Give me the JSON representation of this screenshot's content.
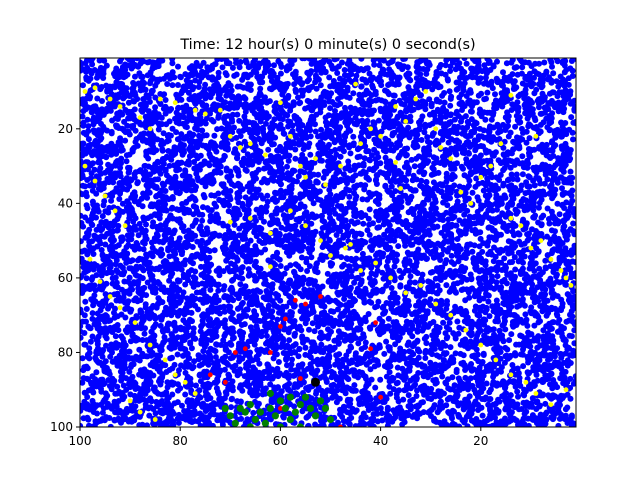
{
  "chart_data": {
    "type": "scatter",
    "title": "Time: 12 hour(s) 0 minute(s) 0 second(s)",
    "xlabel": "",
    "ylabel": "",
    "xlim": [
      100,
      1
    ],
    "ylim": [
      100,
      1
    ],
    "x_ticks": [
      100,
      80,
      60,
      40,
      20
    ],
    "y_ticks": [
      20,
      40,
      60,
      80,
      100
    ],
    "grid": false,
    "legend": "none",
    "background_fill": {
      "color": "#0000ff",
      "seed": 7,
      "count": 9000,
      "x_range": [
        1,
        100
      ],
      "y_range": [
        1,
        100
      ]
    },
    "series": [
      {
        "color": "#ffff00",
        "points": [
          [
            99,
            10
          ],
          [
            97,
            9
          ],
          [
            94,
            12
          ],
          [
            92,
            14
          ],
          [
            88,
            17
          ],
          [
            86,
            20
          ],
          [
            84,
            12
          ],
          [
            81,
            13
          ],
          [
            77,
            15
          ],
          [
            75,
            16
          ],
          [
            72,
            15
          ],
          [
            70,
            22
          ],
          [
            68,
            25
          ],
          [
            66,
            24
          ],
          [
            63,
            27
          ],
          [
            60,
            13
          ],
          [
            58,
            22
          ],
          [
            56,
            30
          ],
          [
            53,
            28
          ],
          [
            51,
            35
          ],
          [
            48,
            30
          ],
          [
            45,
            8
          ],
          [
            44,
            24
          ],
          [
            42,
            20
          ],
          [
            40,
            22
          ],
          [
            37,
            14
          ],
          [
            35,
            18
          ],
          [
            33,
            12
          ],
          [
            31,
            10
          ],
          [
            29,
            20
          ],
          [
            28,
            25
          ],
          [
            26,
            28
          ],
          [
            24,
            37
          ],
          [
            22,
            40
          ],
          [
            20,
            33
          ],
          [
            18,
            30
          ],
          [
            16,
            24
          ],
          [
            14,
            44
          ],
          [
            12,
            46
          ],
          [
            10,
            52
          ],
          [
            8,
            50
          ],
          [
            6,
            55
          ],
          [
            4,
            58
          ],
          [
            3,
            60
          ],
          [
            2,
            62
          ],
          [
            99,
            30
          ],
          [
            97,
            34
          ],
          [
            95,
            38
          ],
          [
            93,
            42
          ],
          [
            91,
            46
          ],
          [
            98,
            55
          ],
          [
            96,
            61
          ],
          [
            94,
            65
          ],
          [
            92,
            68
          ],
          [
            89,
            72
          ],
          [
            86,
            78
          ],
          [
            83,
            82
          ],
          [
            81,
            86
          ],
          [
            79,
            88
          ],
          [
            77,
            91
          ],
          [
            90,
            93
          ],
          [
            88,
            96
          ],
          [
            85,
            98
          ],
          [
            70,
            45
          ],
          [
            66,
            44
          ],
          [
            62,
            48
          ],
          [
            58,
            42
          ],
          [
            55,
            46
          ],
          [
            52,
            50
          ],
          [
            50,
            54
          ],
          [
            47,
            52
          ],
          [
            44,
            58
          ],
          [
            41,
            56
          ],
          [
            38,
            60
          ],
          [
            35,
            64
          ],
          [
            32,
            62
          ],
          [
            29,
            67
          ],
          [
            26,
            70
          ],
          [
            23,
            74
          ],
          [
            20,
            78
          ],
          [
            17,
            82
          ],
          [
            14,
            86
          ],
          [
            11,
            88
          ],
          [
            9,
            91
          ],
          [
            6,
            94
          ],
          [
            3,
            90
          ],
          [
            36,
            36
          ],
          [
            62,
            57
          ],
          [
            55,
            33
          ],
          [
            46,
            51
          ],
          [
            37,
            29
          ],
          [
            14,
            11
          ],
          [
            9,
            22
          ]
        ]
      },
      {
        "color": "#ff0000",
        "points": [
          [
            57,
            66
          ],
          [
            55,
            67
          ],
          [
            52,
            65
          ],
          [
            59,
            71
          ],
          [
            60,
            73
          ],
          [
            41,
            72
          ],
          [
            42,
            79
          ],
          [
            62,
            80
          ],
          [
            67,
            79
          ],
          [
            69,
            80
          ],
          [
            74,
            86
          ],
          [
            71,
            88
          ],
          [
            56,
            87
          ],
          [
            40,
            92
          ],
          [
            48,
            100
          ],
          [
            60,
            95
          ]
        ]
      },
      {
        "color": "#008000",
        "points": [
          [
            71,
            95
          ],
          [
            70,
            97
          ],
          [
            69,
            99
          ],
          [
            68,
            95
          ],
          [
            67,
            96
          ],
          [
            66,
            94
          ],
          [
            65,
            98
          ],
          [
            64,
            96
          ],
          [
            63,
            99
          ],
          [
            62,
            95
          ],
          [
            61,
            97
          ],
          [
            60,
            93
          ],
          [
            59,
            95
          ],
          [
            58,
            98
          ],
          [
            57,
            96
          ],
          [
            56,
            94
          ],
          [
            55,
            92
          ],
          [
            54,
            95
          ],
          [
            53,
            97
          ],
          [
            52,
            93
          ],
          [
            51,
            95
          ],
          [
            50,
            98
          ],
          [
            58,
            92
          ],
          [
            62,
            91
          ],
          [
            66,
            100
          ],
          [
            60,
            100
          ],
          [
            56,
            100
          ]
        ]
      },
      {
        "color": "#000000",
        "points": [
          [
            53,
            88
          ]
        ]
      }
    ]
  }
}
